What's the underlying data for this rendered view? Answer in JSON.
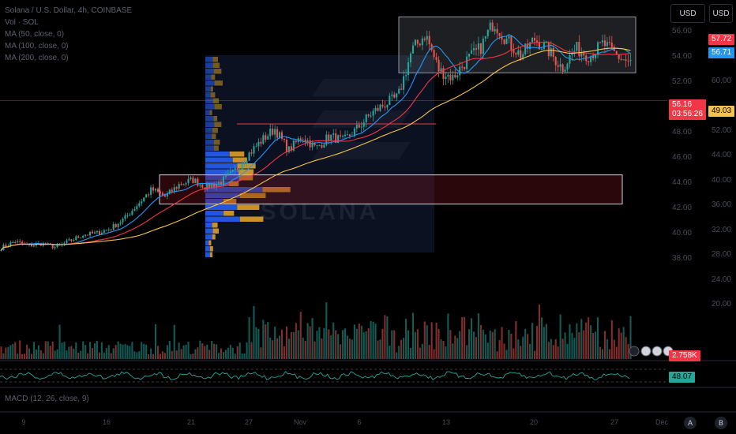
{
  "legend": {
    "symbol": "Solana / U.S. Dollar, 4h, COINBASE",
    "vol": "Vol · SOL",
    "ma1": "MA (50, close, 0)",
    "ma2": "MA (100, close, 0)",
    "ma3": "MA (200, close, 0)"
  },
  "toolbar": {
    "currency_left": "USD",
    "currency_right": "USD"
  },
  "price_axis": {
    "ticks_right": [
      "56.00",
      "54.00",
      "52.00",
      "50.00",
      "48.00",
      "46.00",
      "44.00",
      "42.00",
      "40.00",
      "38.00"
    ],
    "ticks_left": [
      "60.00",
      "52.00",
      "44.00",
      "40.00",
      "36.00",
      "32.00",
      "28.00",
      "24.00",
      "20.00"
    ]
  },
  "price_tags": {
    "ma_fast": "57.72",
    "ma_mid": "56.71",
    "last_price": "56.16",
    "countdown": "03:56:26",
    "ma_slow": "49.03",
    "volume": "2.758K",
    "rsi": "48.07"
  },
  "colors": {
    "up": "#26a69a",
    "down": "#ef5350",
    "ma_fast": "#2196f3",
    "ma_mid": "#f23645",
    "ma_slow": "#f6c24a",
    "rsi": "#26a69a",
    "profile_up": "#2962ff",
    "profile_down": "#f7b32b"
  },
  "panes": {
    "macd_label": "MACD (12, 26, close, 9)"
  },
  "footer": {
    "a_button": "A",
    "b_button": "B"
  },
  "watermark": "SOLANA",
  "chart_data": {
    "type": "candlestick",
    "interval": "4h",
    "x_ticks": [
      "9",
      "16",
      "21",
      "27",
      "Nov",
      "6",
      "13",
      "20",
      "27",
      "Dec"
    ],
    "close_path": [
      18.5,
      19.8,
      18.9,
      19.4,
      18.6,
      19.9,
      21.2,
      21.5,
      22.5,
      24.5,
      27.5,
      30.5,
      29.0,
      31.5,
      32.5,
      31.0,
      32.0,
      34.0,
      37.5,
      40.5,
      43.0,
      38.5,
      41.5,
      39.0,
      41.5,
      40.5,
      43.0,
      46.0,
      48.0,
      49.5,
      59.0,
      62.5,
      55.0,
      53.5,
      57.0,
      59.5,
      65.0,
      61.0,
      58.0,
      61.5,
      59.0,
      55.5,
      59.5,
      58.0,
      60.5,
      58.0,
      56.5
    ],
    "key_level": 44.0,
    "range_box": {
      "high": 66.0,
      "low": 54.5
    },
    "support_box": {
      "high": 33.5,
      "low": 27.5
    },
    "rsi_last": 48.07,
    "volume_last": "2.758K"
  }
}
